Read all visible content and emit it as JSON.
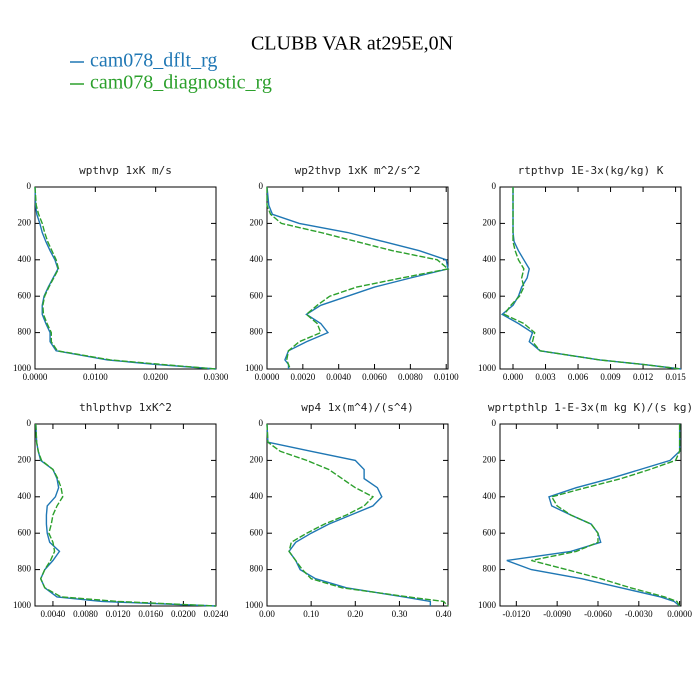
{
  "title": "CLUBB VAR at295E,0N",
  "legend": [
    {
      "name": "cam078_dflt_rg",
      "color": "#1f77b4"
    },
    {
      "name": "cam078_diagnostic_rg",
      "color": "#2ca02c"
    }
  ],
  "chart_data": [
    {
      "type": "line",
      "title": "wpthvp  1xK m/s",
      "y": [
        0,
        100,
        150,
        200,
        250,
        300,
        350,
        400,
        450,
        500,
        550,
        600,
        650,
        700,
        750,
        800,
        850,
        900,
        950,
        975,
        1000
      ],
      "ylim": [
        1000,
        0
      ],
      "yticks": [
        0,
        200,
        400,
        600,
        800,
        1000
      ],
      "xlim": [
        0,
        0.03
      ],
      "xticks": [
        {
          "value": 0,
          "label": "0.0000"
        },
        {
          "value": 0.01,
          "label": "0.0100"
        },
        {
          "value": 0.02,
          "label": "0.0200"
        },
        {
          "value": 0.03,
          "label": "0.0300"
        }
      ],
      "series": [
        {
          "color": "#1f77b4",
          "values": [
            0,
            0.0001,
            0.0003,
            0.0008,
            0.0012,
            0.0018,
            0.0025,
            0.0033,
            0.0038,
            0.003,
            0.0022,
            0.0015,
            0.0012,
            0.0012,
            0.0018,
            0.0025,
            0.0025,
            0.0035,
            0.012,
            0.02,
            0.03
          ]
        },
        {
          "color": "#2ca02c",
          "values": [
            0,
            0.0002,
            0.0006,
            0.0012,
            0.0016,
            0.0021,
            0.0028,
            0.0035,
            0.0039,
            0.0031,
            0.0023,
            0.0016,
            0.0013,
            0.0014,
            0.002,
            0.0027,
            0.0027,
            0.0037,
            0.0125,
            0.021,
            0.03
          ]
        }
      ]
    },
    {
      "type": "line",
      "title": "wp2thvp  1xK m^2/s^2",
      "y": [
        0,
        100,
        150,
        200,
        250,
        300,
        350,
        400,
        450,
        500,
        550,
        600,
        650,
        700,
        750,
        800,
        850,
        900,
        950,
        975,
        1000
      ],
      "ylim": [
        1000,
        0
      ],
      "yticks": [
        0,
        200,
        400,
        600,
        800,
        1000
      ],
      "xlim": [
        0,
        0.0101
      ],
      "xticks": [
        {
          "value": 0,
          "label": "0.0000"
        },
        {
          "value": 0.002,
          "label": "0.0020"
        },
        {
          "value": 0.004,
          "label": "0.0040"
        },
        {
          "value": 0.006,
          "label": "0.0060"
        },
        {
          "value": 0.008,
          "label": "0.0080"
        },
        {
          "value": 0.01,
          "label": "0.0100"
        }
      ],
      "series": [
        {
          "color": "#1f77b4",
          "values": [
            0,
            0.0001,
            0.0003,
            0.0018,
            0.0045,
            0.0065,
            0.0085,
            0.01,
            0.0101,
            0.008,
            0.006,
            0.0045,
            0.003,
            0.0022,
            0.003,
            0.0034,
            0.0022,
            0.0012,
            0.001,
            0.0012,
            0.0012
          ]
        },
        {
          "color": "#2ca02c",
          "values": [
            0,
            0,
            0.0002,
            0.0008,
            0.003,
            0.005,
            0.007,
            0.0095,
            0.0101,
            0.0075,
            0.005,
            0.0035,
            0.0028,
            0.0022,
            0.0028,
            0.003,
            0.0018,
            0.0012,
            0.0011,
            0.0012,
            0.0013
          ]
        }
      ]
    },
    {
      "type": "line",
      "title": "rtpthvp  1E-3x(kg/kg) K",
      "y": [
        0,
        100,
        150,
        200,
        250,
        300,
        350,
        400,
        450,
        500,
        550,
        600,
        650,
        700,
        750,
        800,
        850,
        900,
        950,
        975,
        1000
      ],
      "ylim": [
        1000,
        0
      ],
      "yticks": [
        0,
        200,
        400,
        600,
        800,
        1000
      ],
      "xlim": [
        -0.0012,
        0.0155
      ],
      "xticks": [
        {
          "value": 0,
          "label": "0.000"
        },
        {
          "value": 0.003,
          "label": "0.003"
        },
        {
          "value": 0.006,
          "label": "0.006"
        },
        {
          "value": 0.009,
          "label": "0.009"
        },
        {
          "value": 0.012,
          "label": "0.012"
        },
        {
          "value": 0.015,
          "label": "0.015"
        }
      ],
      "series": [
        {
          "color": "#1f77b4",
          "values": [
            0,
            0,
            0,
            0,
            0,
            0.0001,
            0.0005,
            0.001,
            0.0015,
            0.0013,
            0.0008,
            0.0005,
            0,
            -0.001,
            0.0005,
            0.0018,
            0.0015,
            0.0025,
            0.008,
            0.012,
            0.0155
          ]
        },
        {
          "color": "#2ca02c",
          "values": [
            0,
            0,
            0,
            0,
            0,
            0,
            0.0002,
            0.0005,
            0.001,
            0.0008,
            0.001,
            0.0006,
            -0.0002,
            -0.0008,
            0.001,
            0.002,
            0.0018,
            0.0025,
            0.008,
            0.012,
            0.0155
          ]
        }
      ]
    },
    {
      "type": "line",
      "title": "thlpthvp  1xK^2",
      "y": [
        0,
        100,
        150,
        200,
        250,
        300,
        350,
        400,
        450,
        500,
        550,
        600,
        650,
        700,
        750,
        800,
        850,
        900,
        950,
        975,
        1000
      ],
      "ylim": [
        1000,
        0
      ],
      "yticks": [
        0,
        200,
        400,
        600,
        800,
        1000
      ],
      "xlim": [
        0.0018,
        0.024
      ],
      "xticks": [
        {
          "value": 0.004,
          "label": "0.0040"
        },
        {
          "value": 0.008,
          "label": "0.0080"
        },
        {
          "value": 0.012,
          "label": "0.0120"
        },
        {
          "value": 0.016,
          "label": "0.0160"
        },
        {
          "value": 0.02,
          "label": "0.0200"
        },
        {
          "value": 0.024,
          "label": "0.0240"
        }
      ],
      "series": [
        {
          "color": "#1f77b4",
          "values": [
            0.0019,
            0.002,
            0.0022,
            0.0025,
            0.004,
            0.0045,
            0.0047,
            0.0043,
            0.0033,
            0.0032,
            0.0032,
            0.0033,
            0.0036,
            0.0048,
            0.004,
            0.003,
            0.0025,
            0.003,
            0.0045,
            0.01,
            0.024
          ]
        },
        {
          "color": "#2ca02c",
          "values": [
            0.0019,
            0.002,
            0.0022,
            0.0026,
            0.004,
            0.0046,
            0.005,
            0.0052,
            0.0045,
            0.004,
            0.0038,
            0.0035,
            0.004,
            0.0042,
            0.0037,
            0.003,
            0.0025,
            0.003,
            0.005,
            0.012,
            0.024
          ]
        }
      ]
    },
    {
      "type": "line",
      "title": "wp4  1x(m^4)/(s^4)",
      "y": [
        0,
        100,
        150,
        200,
        250,
        300,
        350,
        400,
        450,
        500,
        550,
        600,
        650,
        700,
        750,
        800,
        850,
        900,
        950,
        975,
        1000
      ],
      "ylim": [
        1000,
        0
      ],
      "yticks": [
        0,
        200,
        400,
        600,
        800,
        1000
      ],
      "xlim": [
        0,
        0.41
      ],
      "xticks": [
        {
          "value": 0,
          "label": "0.00"
        },
        {
          "value": 0.1,
          "label": "0.10"
        },
        {
          "value": 0.2,
          "label": "0.20"
        },
        {
          "value": 0.3,
          "label": "0.30"
        },
        {
          "value": 0.4,
          "label": "0.40"
        }
      ],
      "series": [
        {
          "color": "#1f77b4",
          "values": [
            0,
            0.002,
            0.1,
            0.2,
            0.22,
            0.22,
            0.25,
            0.26,
            0.24,
            0.19,
            0.14,
            0.1,
            0.065,
            0.05,
            0.065,
            0.075,
            0.11,
            0.18,
            0.31,
            0.37,
            0.37
          ]
        },
        {
          "color": "#2ca02c",
          "values": [
            0,
            0.002,
            0.03,
            0.09,
            0.14,
            0.17,
            0.2,
            0.24,
            0.22,
            0.18,
            0.13,
            0.09,
            0.055,
            0.05,
            0.065,
            0.08,
            0.1,
            0.17,
            0.32,
            0.4,
            0.41
          ]
        }
      ]
    },
    {
      "type": "line",
      "title": "wprtpthlp  1-E-3x(m kg K)/(s kg)",
      "y": [
        0,
        100,
        150,
        200,
        250,
        300,
        350,
        400,
        450,
        500,
        550,
        600,
        650,
        700,
        750,
        800,
        850,
        900,
        950,
        975,
        1000
      ],
      "ylim": [
        1000,
        0
      ],
      "yticks": [
        0,
        200,
        400,
        600,
        800,
        1000
      ],
      "xlim": [
        -0.0132,
        0.0001
      ],
      "xticks": [
        {
          "value": -0.012,
          "label": "-0.0120"
        },
        {
          "value": -0.009,
          "label": "-0.0090"
        },
        {
          "value": -0.006,
          "label": "-0.0060"
        },
        {
          "value": -0.003,
          "label": "-0.0030"
        },
        {
          "value": 0,
          "label": "0.0000"
        }
      ],
      "series": [
        {
          "color": "#1f77b4",
          "values": [
            0,
            0,
            0,
            -0.0007,
            -0.0029,
            -0.0051,
            -0.0076,
            -0.0096,
            -0.0094,
            -0.008,
            -0.0065,
            -0.006,
            -0.0058,
            -0.008,
            -0.0127,
            -0.0109,
            -0.0072,
            -0.0043,
            -0.0014,
            -0.0004,
            0
          ]
        },
        {
          "color": "#2ca02c",
          "values": [
            0,
            0,
            0,
            -0.0003,
            -0.0022,
            -0.0043,
            -0.0069,
            -0.0094,
            -0.009,
            -0.008,
            -0.0065,
            -0.006,
            -0.006,
            -0.0076,
            -0.0109,
            -0.0083,
            -0.0058,
            -0.0036,
            -0.0011,
            -0.0002,
            0
          ]
        }
      ]
    }
  ]
}
